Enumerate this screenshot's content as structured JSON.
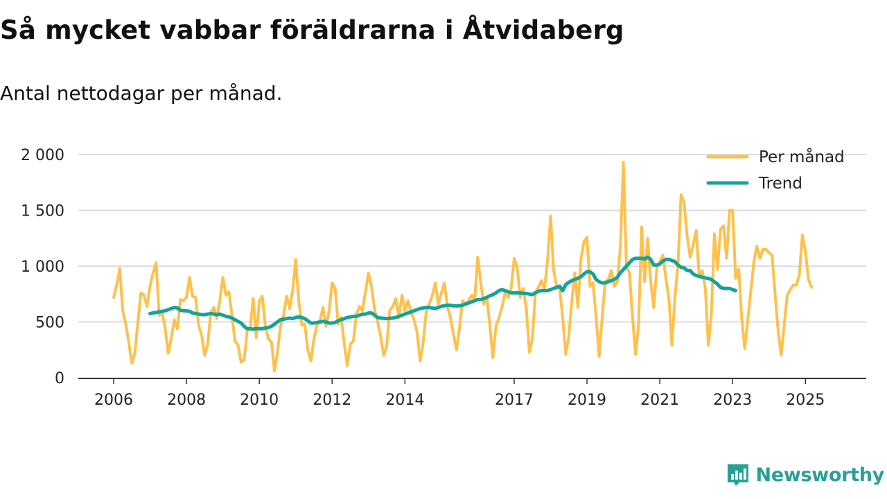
{
  "title": "Så mycket vabbar föräldrarna i Åtvidaberg",
  "subtitle": "Antal nettodagar per månad.",
  "brand": {
    "name": "Newsworthy",
    "icon": "newsworthy-logo-icon"
  },
  "colors": {
    "per_month": "#ffc04c",
    "trend": "#14a39b",
    "grid": "#dddddd",
    "axis": "#333333",
    "brand": "#27a197"
  },
  "chart_data": {
    "type": "line",
    "title": "Så mycket vabbar föräldrarna i Åtvidaberg",
    "subtitle": "Antal nettodagar per månad.",
    "xlabel": "",
    "ylabel": "",
    "ylim": [
      0,
      2000
    ],
    "xlim": [
      2006.0,
      2025.67
    ],
    "yticks": [
      0,
      500,
      1000,
      1500,
      2000
    ],
    "ytick_labels": [
      "0",
      "500",
      "1 000",
      "1 500",
      "2 000"
    ],
    "xticks": [
      2006,
      2008,
      2010,
      2012,
      2014,
      2017,
      2019,
      2021,
      2023,
      2025
    ],
    "xtick_labels": [
      "2006",
      "2008",
      "2010",
      "2012",
      "2014",
      "2017",
      "2019",
      "2021",
      "2023",
      "2025"
    ],
    "grid": true,
    "legend_position": "top-right",
    "series": [
      {
        "name": "Per månad",
        "start": 2006.0,
        "step_months": 1,
        "values": [
          720,
          830,
          980,
          600,
          480,
          310,
          130,
          220,
          500,
          760,
          740,
          640,
          820,
          940,
          1030,
          560,
          580,
          440,
          220,
          360,
          520,
          440,
          700,
          690,
          720,
          900,
          730,
          720,
          470,
          380,
          200,
          300,
          580,
          630,
          530,
          690,
          900,
          740,
          770,
          550,
          330,
          290,
          140,
          160,
          420,
          440,
          710,
          360,
          690,
          730,
          460,
          350,
          320,
          60,
          230,
          460,
          560,
          730,
          620,
          780,
          1060,
          690,
          470,
          480,
          250,
          150,
          350,
          470,
          510,
          630,
          460,
          600,
          850,
          800,
          480,
          540,
          300,
          110,
          300,
          330,
          570,
          640,
          600,
          770,
          940,
          810,
          610,
          500,
          370,
          200,
          290,
          600,
          640,
          710,
          540,
          740,
          600,
          690,
          590,
          520,
          410,
          150,
          310,
          590,
          660,
          730,
          850,
          660,
          760,
          850,
          640,
          540,
          390,
          250,
          450,
          690,
          660,
          690,
          740,
          700,
          1080,
          850,
          660,
          720,
          470,
          180,
          460,
          540,
          630,
          760,
          720,
          800,
          1070,
          990,
          720,
          800,
          620,
          230,
          350,
          760,
          810,
          870,
          790,
          1050,
          1450,
          960,
          820,
          800,
          540,
          210,
          370,
          690,
          940,
          630,
          1060,
          1220,
          1260,
          820,
          850,
          540,
          190,
          540,
          860,
          880,
          960,
          820,
          860,
          1170,
          1930,
          990,
          940,
          550,
          210,
          470,
          1350,
          860,
          1250,
          860,
          630,
          980,
          1040,
          1100,
          890,
          710,
          290,
          730,
          1020,
          1640,
          1570,
          1270,
          1080,
          1190,
          1320,
          900,
          960,
          800,
          290,
          580,
          1290,
          970,
          1330,
          1360,
          1070,
          1500,
          1500,
          890,
          970,
          540,
          260,
          520,
          780,
          1040,
          1180,
          1070,
          1150,
          1150,
          1120,
          1100,
          750,
          420,
          200,
          470,
          740,
          790,
          830,
          830,
          920,
          1280,
          1130,
          880,
          810
        ]
      },
      {
        "name": "Trend",
        "start": 2007.0,
        "step_months": 1,
        "values": [
          575,
          580,
          585,
          590,
          595,
          600,
          610,
          620,
          630,
          625,
          605,
          600,
          600,
          595,
          580,
          575,
          570,
          565,
          565,
          570,
          575,
          570,
          565,
          570,
          560,
          550,
          545,
          535,
          520,
          505,
          490,
          460,
          440,
          440,
          435,
          440,
          440,
          440,
          445,
          450,
          460,
          480,
          500,
          520,
          525,
          530,
          535,
          530,
          540,
          545,
          540,
          530,
          510,
          490,
          490,
          495,
          500,
          505,
          500,
          490,
          490,
          495,
          510,
          520,
          530,
          540,
          545,
          550,
          550,
          560,
          570,
          570,
          580,
          580,
          560,
          540,
          535,
          532,
          530,
          532,
          535,
          540,
          550,
          560,
          570,
          580,
          590,
          600,
          610,
          620,
          625,
          630,
          630,
          625,
          620,
          630,
          640,
          645,
          650,
          650,
          645,
          645,
          645,
          650,
          660,
          670,
          680,
          690,
          700,
          700,
          710,
          720,
          735,
          745,
          760,
          780,
          790,
          780,
          770,
          760,
          760,
          760,
          760,
          755,
          755,
          750,
          745,
          760,
          775,
          780,
          780,
          780,
          790,
          800,
          810,
          820,
          780,
          835,
          855,
          870,
          880,
          890,
          905,
          930,
          950,
          950,
          930,
          880,
          860,
          850,
          850,
          860,
          870,
          880,
          900,
          940,
          970,
          1000,
          1030,
          1060,
          1070,
          1070,
          1070,
          1065,
          1080,
          1060,
          1010,
          1010,
          1020,
          1045,
          1060,
          1060,
          1050,
          1040,
          1010,
          990,
          985,
          960,
          960,
          930,
          915,
          910,
          900,
          895,
          890,
          880,
          860,
          840,
          810,
          800,
          800,
          800,
          790,
          780
        ]
      }
    ]
  }
}
